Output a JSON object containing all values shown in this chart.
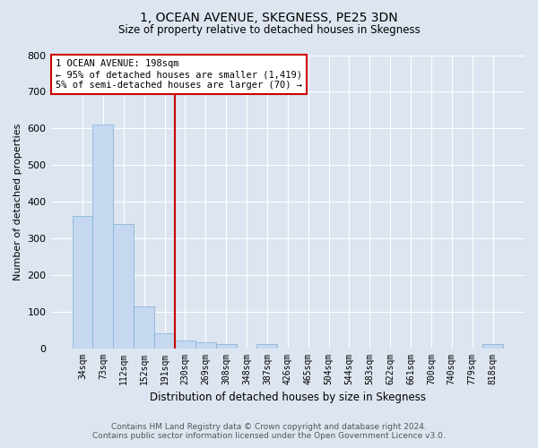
{
  "title": "1, OCEAN AVENUE, SKEGNESS, PE25 3DN",
  "subtitle": "Size of property relative to detached houses in Skegness",
  "xlabel": "Distribution of detached houses by size in Skegness",
  "ylabel": "Number of detached properties",
  "footer_line1": "Contains HM Land Registry data © Crown copyright and database right 2024.",
  "footer_line2": "Contains public sector information licensed under the Open Government Licence v3.0.",
  "categories": [
    "34sqm",
    "73sqm",
    "112sqm",
    "152sqm",
    "191sqm",
    "230sqm",
    "269sqm",
    "308sqm",
    "348sqm",
    "387sqm",
    "426sqm",
    "465sqm",
    "504sqm",
    "544sqm",
    "583sqm",
    "622sqm",
    "661sqm",
    "700sqm",
    "740sqm",
    "779sqm",
    "818sqm"
  ],
  "values": [
    360,
    610,
    340,
    115,
    40,
    20,
    15,
    10,
    0,
    10,
    0,
    0,
    0,
    0,
    0,
    0,
    0,
    0,
    0,
    0,
    10
  ],
  "bar_color": "#c5d8f0",
  "bar_edge_color": "#7aafd4",
  "background_color": "#dde5f0",
  "grid_color": "#ffffff",
  "annotation_text": "1 OCEAN AVENUE: 198sqm\n← 95% of detached houses are smaller (1,419)\n5% of semi-detached houses are larger (70) →",
  "annotation_box_color": "#ffffff",
  "annotation_box_edge_color": "#cc0000",
  "red_line_x": 4.5,
  "ylim": [
    0,
    800
  ],
  "yticks": [
    0,
    100,
    200,
    300,
    400,
    500,
    600,
    700,
    800
  ]
}
